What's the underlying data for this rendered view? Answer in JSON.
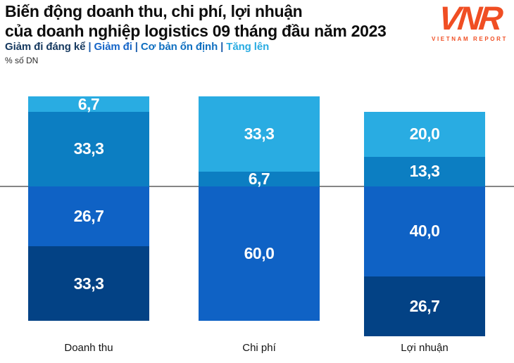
{
  "header": {
    "title_line1": "Biến động doanh thu, chi phí, lợi nhuận",
    "title_line2": "của doanh nghiệp logistics 09 tháng đầu năm 2023",
    "unit_label": "% số DN",
    "legend_separator": "|",
    "legend": [
      {
        "label": "Giảm đi đáng kể",
        "color": "#16395F"
      },
      {
        "label": "Giảm đi",
        "color": "#1565C8"
      },
      {
        "label": "Cơ bản ổn định",
        "color": "#0F6FC0"
      },
      {
        "label": "Tăng lên",
        "color": "#29ACE2"
      }
    ]
  },
  "logo": {
    "monogram": "VNR",
    "wordmark": "VIETNAM REPORT",
    "color": "#F04E23"
  },
  "chart_data": {
    "type": "bar",
    "variant": "diverging-stacked-100pct",
    "stack_unit": "% số DN",
    "title": "Biến động doanh thu, chi phí, lợi nhuận của doanh nghiệp logistics 09 tháng đầu năm 2023",
    "categories": [
      "Doanh thu",
      "Chi phí",
      "Lợi nhuận"
    ],
    "series": [
      {
        "name": "Tăng lên",
        "color": "#29ACE2",
        "side": "above",
        "values": [
          6.7,
          33.3,
          20.0
        ],
        "labels": [
          "6,7",
          "33,3",
          "20,0"
        ]
      },
      {
        "name": "Cơ bản ổn định",
        "color": "#0C7EC2",
        "side": "above",
        "values": [
          33.3,
          6.7,
          13.3
        ],
        "labels": [
          "33,3",
          "6,7",
          "13,3"
        ]
      },
      {
        "name": "Giảm đi",
        "color": "#0F62C5",
        "side": "below",
        "values": [
          26.7,
          60.0,
          40.0
        ],
        "labels": [
          "26,7",
          "60,0",
          "40,0"
        ]
      },
      {
        "name": "Giảm đi đáng kể",
        "color": "#034285",
        "side": "below",
        "values": [
          33.3,
          0.0,
          26.7
        ],
        "labels": [
          "33,3",
          "",
          "26,7"
        ]
      }
    ],
    "baseline_meaning": "divider: Tăng lên + Cơ bản ổn định above, Giảm đi + Giảm đi đáng kể below",
    "value_label_color": "#FFFFFF",
    "grid": false,
    "legend_position": "top-left-inline"
  }
}
